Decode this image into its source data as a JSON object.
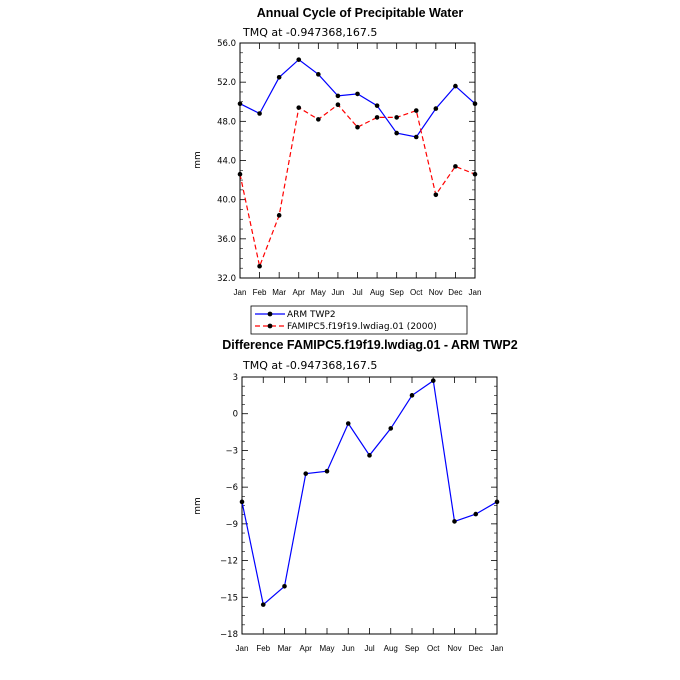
{
  "chart_data": [
    {
      "type": "line",
      "title": "Annual Cycle of Precipitable Water",
      "subtitle": "TMQ at -0.947368,167.5",
      "xlabel": "",
      "ylabel": "mm",
      "categories": [
        "Jan",
        "Feb",
        "Mar",
        "Apr",
        "May",
        "Jun",
        "Jul",
        "Aug",
        "Sep",
        "Oct",
        "Nov",
        "Dec",
        "Jan"
      ],
      "ylim": [
        32.0,
        56.0
      ],
      "yticks": [
        "32.0",
        "36.0",
        "40.0",
        "44.0",
        "48.0",
        "52.0",
        "56.0"
      ],
      "series": [
        {
          "name": "ARM TWP2",
          "color": "#0000ff",
          "dash": "solid",
          "values": [
            49.8,
            48.8,
            52.5,
            54.3,
            52.8,
            50.6,
            50.8,
            49.6,
            46.8,
            46.4,
            49.3,
            51.6,
            49.8
          ]
        },
        {
          "name": "FAMIPC5.f19f19.lwdiag.01 (2000)",
          "color": "#ff0000",
          "dash": "dashed",
          "values": [
            42.6,
            33.2,
            38.4,
            49.4,
            48.2,
            49.7,
            47.4,
            48.4,
            48.4,
            49.1,
            40.5,
            43.4,
            42.6
          ]
        }
      ],
      "legend_position": "bottom"
    },
    {
      "type": "line",
      "title": "Difference FAMIPC5.f19f19.lwdiag.01 - ARM TWP2",
      "subtitle": "TMQ at -0.947368,167.5",
      "xlabel": "",
      "ylabel": "mm",
      "categories": [
        "Jan",
        "Feb",
        "Mar",
        "Apr",
        "May",
        "Jun",
        "Jul",
        "Aug",
        "Sep",
        "Oct",
        "Nov",
        "Dec",
        "Jan"
      ],
      "ylim": [
        -18,
        3
      ],
      "yticks": [
        "−18",
        "−15",
        "−12",
        "−9",
        "−6",
        "−3",
        "0",
        "3"
      ],
      "series": [
        {
          "color": "#0000ff",
          "dash": "solid",
          "values": [
            -7.2,
            -15.6,
            -14.1,
            -4.9,
            -4.7,
            -0.8,
            -3.4,
            -1.2,
            1.5,
            2.7,
            -8.8,
            -8.2,
            -7.2
          ]
        }
      ]
    }
  ]
}
